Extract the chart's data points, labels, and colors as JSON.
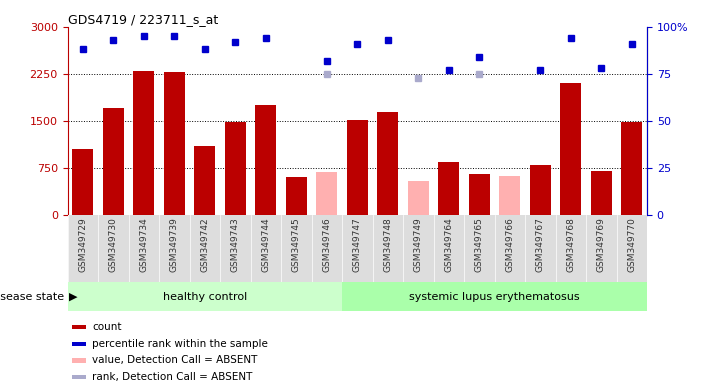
{
  "title": "GDS4719 / 223711_s_at",
  "samples": [
    "GSM349729",
    "GSM349730",
    "GSM349734",
    "GSM349739",
    "GSM349742",
    "GSM349743",
    "GSM349744",
    "GSM349745",
    "GSM349746",
    "GSM349747",
    "GSM349748",
    "GSM349749",
    "GSM349764",
    "GSM349765",
    "GSM349766",
    "GSM349767",
    "GSM349768",
    "GSM349769",
    "GSM349770"
  ],
  "count_values": [
    1050,
    1700,
    2300,
    2280,
    1100,
    1480,
    1750,
    600,
    null,
    1520,
    1650,
    null,
    850,
    660,
    null,
    790,
    2100,
    700,
    1480
  ],
  "absent_value_bars": [
    null,
    null,
    null,
    null,
    null,
    null,
    null,
    null,
    680,
    null,
    null,
    550,
    null,
    null,
    620,
    null,
    null,
    null,
    null
  ],
  "percentile_values": [
    88,
    93,
    95,
    95,
    88,
    92,
    94,
    null,
    82,
    91,
    93,
    null,
    77,
    84,
    null,
    77,
    94,
    78,
    91
  ],
  "absent_rank_dots": [
    null,
    null,
    null,
    null,
    null,
    null,
    null,
    null,
    75,
    null,
    null,
    73,
    null,
    75,
    null,
    null,
    null,
    null,
    null
  ],
  "n_healthy": 9,
  "n_sle": 10,
  "healthy_label": "healthy control",
  "sle_label": "systemic lupus erythematosus",
  "disease_state_label": "disease state",
  "ylim_left": [
    0,
    3000
  ],
  "ylim_right": [
    0,
    100
  ],
  "yticks_left": [
    0,
    750,
    1500,
    2250,
    3000
  ],
  "yticks_right": [
    0,
    25,
    50,
    75,
    100
  ],
  "bar_color_dark": "#bb0000",
  "bar_color_absent": "#ffb0b0",
  "dot_color_present": "#0000cc",
  "dot_color_absent": "#aaaacc",
  "healthy_bg": "#ccffcc",
  "sle_bg": "#aaffaa",
  "legend_items": [
    "count",
    "percentile rank within the sample",
    "value, Detection Call = ABSENT",
    "rank, Detection Call = ABSENT"
  ],
  "legend_colors": [
    "#bb0000",
    "#0000cc",
    "#ffb0b0",
    "#aaaacc"
  ]
}
